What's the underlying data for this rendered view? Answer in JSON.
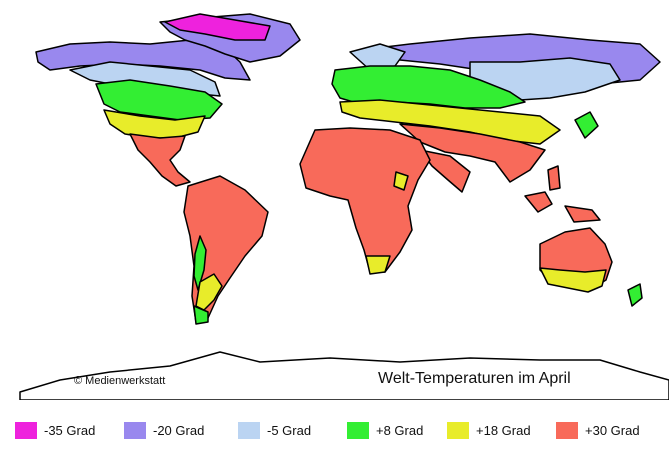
{
  "map": {
    "title": "Welt-Temperaturen im April",
    "copyright": "© Medienwerkstatt"
  },
  "legend": {
    "items": [
      {
        "label": "-35 Grad",
        "color": "#ee22dd"
      },
      {
        "label": "-20 Grad",
        "color": "#9988ee"
      },
      {
        "label": "-5 Grad",
        "color": "#bbd4f2"
      },
      {
        "label": "+8 Grad",
        "color": "#33ee33"
      },
      {
        "label": "+18 Grad",
        "color": "#e8ec2a"
      },
      {
        "label": "+30 Grad",
        "color": "#f86a5a"
      }
    ]
  }
}
